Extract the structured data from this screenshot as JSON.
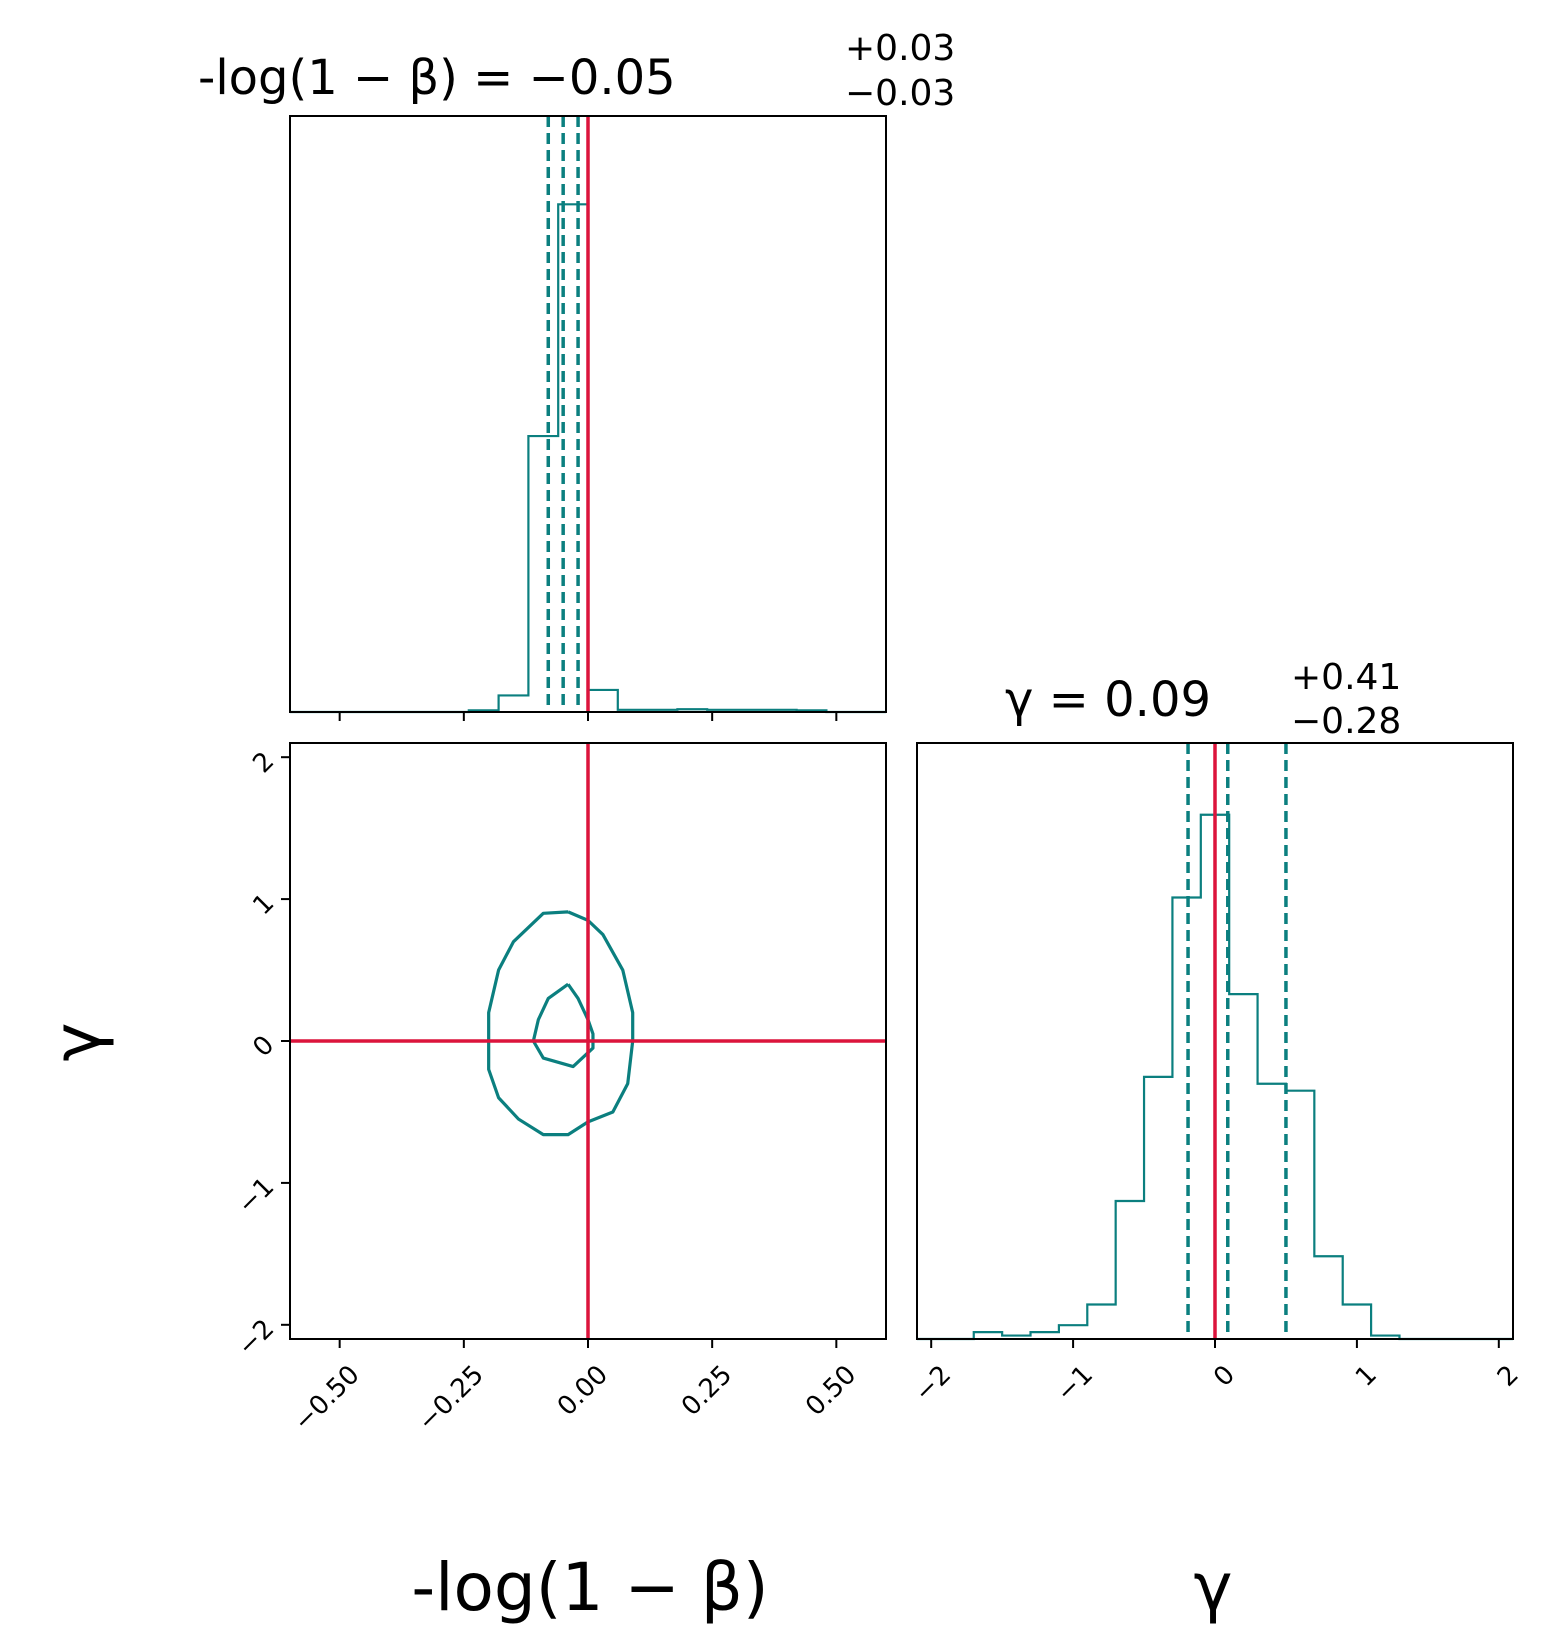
{
  "colors": {
    "posterior": "#0b7f7f",
    "truth": "#dc143c",
    "axis": "#000000"
  },
  "chart_data": [
    {
      "type": "histogram",
      "panel": "top-left",
      "title": {
        "lhs": "-log(1 − β)",
        "eq": " = −0.05",
        "sup": "+0.03",
        "sub": "−0.03"
      },
      "xlim": [
        -0.6,
        0.6
      ],
      "xticks": [
        -0.5,
        -0.25,
        0.0,
        0.25,
        0.5
      ],
      "xtick_labels": [
        "",
        "",
        "",
        "",
        ""
      ],
      "yticks_shown": false,
      "bin_edges": [
        -0.6,
        -0.54,
        -0.48,
        -0.42,
        -0.36,
        -0.3,
        -0.24,
        -0.18,
        -0.12,
        -0.06,
        0.0,
        0.06,
        0.12,
        0.18,
        0.24,
        0.3,
        0.36,
        0.42,
        0.48,
        0.54,
        0.6
      ],
      "counts": [
        0,
        0,
        0,
        0,
        0,
        0,
        0.003,
        0.03,
        0.5,
        0.92,
        0.04,
        0.004,
        0.004,
        0.005,
        0.004,
        0.004,
        0.004,
        0.003,
        0,
        0
      ],
      "ymax": 1.0,
      "quantiles": [
        -0.08,
        -0.05,
        -0.02
      ],
      "truth": 0.0
    },
    {
      "type": "contour",
      "panel": "bottom-left",
      "xlim": [
        -0.6,
        0.6
      ],
      "ylim": [
        -2.1,
        2.1
      ],
      "xticks": [
        -0.5,
        -0.25,
        0.0,
        0.25,
        0.5
      ],
      "xtick_labels": [
        "−0.50",
        "−0.25",
        "0.00",
        "0.25",
        "0.50"
      ],
      "yticks": [
        -2,
        -1,
        0,
        1,
        2
      ],
      "ytick_labels": [
        "−2",
        "−1",
        "0",
        "1",
        "2"
      ],
      "xlabel": "-log(1 − β)",
      "ylabel": "γ",
      "contours": [
        {
          "level": "inner",
          "points": [
            [
              -0.04,
              0.4
            ],
            [
              -0.02,
              0.3
            ],
            [
              0.0,
              0.15
            ],
            [
              0.01,
              0.05
            ],
            [
              0.01,
              -0.05
            ],
            [
              -0.03,
              -0.18
            ],
            [
              -0.09,
              -0.12
            ],
            [
              -0.11,
              0.0
            ],
            [
              -0.1,
              0.15
            ],
            [
              -0.08,
              0.3
            ],
            [
              -0.04,
              0.4
            ]
          ]
        },
        {
          "level": "outer",
          "points": [
            [
              -0.04,
              0.91
            ],
            [
              0.0,
              0.85
            ],
            [
              0.03,
              0.75
            ],
            [
              0.07,
              0.5
            ],
            [
              0.09,
              0.2
            ],
            [
              0.09,
              0.0
            ],
            [
              0.08,
              -0.3
            ],
            [
              0.05,
              -0.5
            ],
            [
              0.0,
              -0.57
            ],
            [
              -0.04,
              -0.66
            ],
            [
              -0.09,
              -0.66
            ],
            [
              -0.14,
              -0.55
            ],
            [
              -0.18,
              -0.4
            ],
            [
              -0.2,
              -0.2
            ],
            [
              -0.2,
              0.0
            ],
            [
              -0.2,
              0.2
            ],
            [
              -0.18,
              0.5
            ],
            [
              -0.15,
              0.7
            ],
            [
              -0.09,
              0.9
            ],
            [
              -0.04,
              0.91
            ]
          ]
        }
      ],
      "truth": {
        "x": 0.0,
        "y": 0.0
      }
    },
    {
      "type": "histogram",
      "panel": "bottom-right",
      "title": {
        "lhs": "γ",
        "eq": " = 0.09",
        "sup": "+0.41",
        "sub": "−0.28"
      },
      "xlim": [
        -2.1,
        2.1
      ],
      "xticks": [
        -2,
        -1,
        0,
        1,
        2
      ],
      "xtick_labels": [
        "−2",
        "−1",
        "0",
        "1",
        "2"
      ],
      "xlabel": "γ",
      "yticks_shown": false,
      "bin_edges": [
        -2.1,
        -1.9,
        -1.7,
        -1.5,
        -1.3,
        -1.1,
        -0.9,
        -0.7,
        -0.5,
        -0.3,
        -0.1,
        0.1,
        0.3,
        0.5,
        0.7,
        0.9,
        1.1,
        1.3,
        1.5,
        1.7,
        1.9,
        2.1
      ],
      "counts": [
        0.0,
        0.0,
        0.01,
        0.005,
        0.01,
        0.02,
        0.05,
        0.2,
        0.38,
        0.64,
        0.76,
        0.5,
        0.37,
        0.36,
        0.12,
        0.05,
        0.005,
        0.0,
        0.0,
        0.0,
        0.0
      ],
      "ymax": 0.8,
      "quantiles": [
        -0.19,
        0.09,
        0.5
      ],
      "truth": 0.0
    }
  ]
}
